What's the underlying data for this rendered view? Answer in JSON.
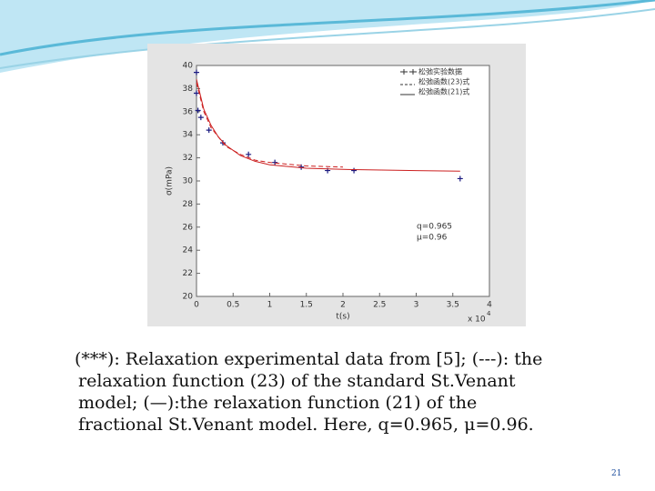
{
  "chart_data": {
    "type": "line",
    "xlabel": "t(s)",
    "ylabel": "σ(mPa)",
    "x_scale_base": "x 10",
    "x_scale_exp": "4",
    "xlim": [
      0,
      4
    ],
    "xticks": [
      0,
      0.5,
      1,
      1.5,
      2,
      2.5,
      3,
      3.5,
      4
    ],
    "ylim": [
      20,
      40
    ],
    "yticks": [
      20,
      22,
      24,
      26,
      28,
      30,
      32,
      34,
      36,
      38,
      40
    ],
    "legend": "upper right",
    "annotations": [
      "q=0.965",
      "μ=0.96"
    ],
    "series": [
      {
        "name": "松弛实验数据",
        "style": "markers",
        "color": "#1a1a80",
        "x": [
          0,
          0,
          0.02,
          0.06,
          0.17,
          0.36,
          0.71,
          1.07,
          1.43,
          1.79,
          2.15,
          3.6
        ],
        "values": [
          39.4,
          37.6,
          36.1,
          35.5,
          34.4,
          33.3,
          32.3,
          31.6,
          31.2,
          30.9,
          30.9,
          30.2
        ]
      },
      {
        "name": "松弛函数(23)式",
        "style": "dashed",
        "color": "#cc2020",
        "x": [
          0,
          0.1,
          0.2,
          0.4,
          0.6,
          0.8,
          1,
          1.5,
          2
        ],
        "values": [
          38.5,
          36,
          34.6,
          33,
          32.3,
          31.8,
          31.6,
          31.3,
          31.2
        ]
      },
      {
        "name": "松弛函数(21)式",
        "style": "solid",
        "color": "#cc2020",
        "x": [
          0,
          0.1,
          0.2,
          0.3,
          0.4,
          0.6,
          0.8,
          1,
          1.5,
          2,
          3,
          3.6
        ],
        "values": [
          38.8,
          36.2,
          34.8,
          33.8,
          33.1,
          32.2,
          31.7,
          31.4,
          31.1,
          31.0,
          30.9,
          30.85
        ]
      }
    ]
  },
  "caption": [
    "(***): Relaxation experimental data from [5]; (---): the",
    "relaxation function (23) of the standard St.Venant",
    "model;  (—):the relaxation function (21) of the",
    "fractional St.Venant model. Here,  q=0.965, μ=0.96."
  ],
  "page_number": "21"
}
